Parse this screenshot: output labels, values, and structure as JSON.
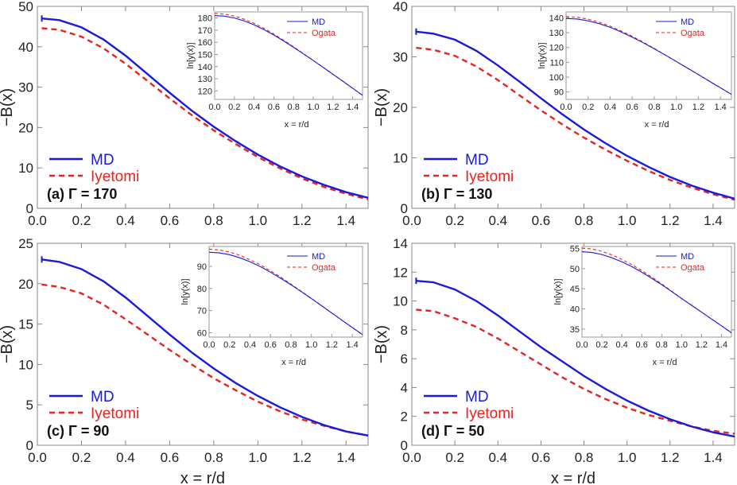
{
  "figure_axis_labels": {
    "ylabel": "−B(x)",
    "xlabel": "x = r/d",
    "inset_ylabel": "ln[y(x)]",
    "inset_xlabel": "x = r/d"
  },
  "colors": {
    "md": "#1a1adc",
    "theory": "#e8231f"
  },
  "chart_data": [
    {
      "type": "line",
      "panel_label": "(a) Γ = 170",
      "xlim": [
        0,
        1.5
      ],
      "ylim": [
        0,
        50
      ],
      "xticks": [
        "0.0",
        "0.2",
        "0.4",
        "0.6",
        "0.8",
        "1.0",
        "1.2",
        "1.4"
      ],
      "yticks": [
        "0",
        "10",
        "20",
        "30",
        "40",
        "50"
      ],
      "legend": [
        "MD",
        "Iyetomi"
      ],
      "x": [
        0.02,
        0.1,
        0.2,
        0.3,
        0.4,
        0.5,
        0.6,
        0.7,
        0.8,
        0.9,
        1.0,
        1.1,
        1.2,
        1.3,
        1.4,
        1.5
      ],
      "series": [
        {
          "name": "MD",
          "values": [
            47.0,
            46.6,
            44.8,
            41.8,
            37.8,
            33.2,
            28.6,
            24.2,
            20.2,
            16.6,
            13.3,
            10.4,
            7.9,
            5.8,
            4.0,
            2.6
          ]
        },
        {
          "name": "Iyetomi",
          "values": [
            44.6,
            44.2,
            42.5,
            39.6,
            35.8,
            31.5,
            27.2,
            23.1,
            19.3,
            15.9,
            12.7,
            9.9,
            7.4,
            5.3,
            3.6,
            2.2
          ]
        }
      ],
      "inset": {
        "type": "line",
        "xlim": [
          0,
          1.5
        ],
        "ylim": [
          113,
          185
        ],
        "xticks": [
          "0.0",
          "0.2",
          "0.4",
          "0.6",
          "0.8",
          "1.0",
          "1.2",
          "1.4"
        ],
        "yticks": [
          "120",
          "130",
          "140",
          "150",
          "160",
          "170",
          "180"
        ],
        "legend": [
          "MD",
          "Ogata"
        ],
        "x": [
          0.0,
          0.1,
          0.2,
          0.3,
          0.4,
          0.5,
          0.6,
          0.7,
          0.8,
          0.9,
          1.0,
          1.1,
          1.2,
          1.3,
          1.4,
          1.5
        ],
        "series": [
          {
            "name": "MD",
            "values": [
              182.0,
              181.5,
              180.0,
              177.6,
              174.4,
              170.4,
              166.0,
              161.1,
              155.9,
              150.5,
              145.0,
              139.4,
              133.7,
              128.0,
              122.2,
              116.4
            ]
          },
          {
            "name": "Ogata",
            "values": [
              183.8,
              183.2,
              181.6,
              179.0,
              175.6,
              171.5,
              166.8,
              161.7,
              156.3,
              150.7,
              145.0,
              139.3,
              133.6,
              127.9,
              122.1,
              116.3
            ]
          }
        ]
      }
    },
    {
      "type": "line",
      "panel_label": "(b) Γ = 130",
      "xlim": [
        0,
        1.5
      ],
      "ylim": [
        0,
        40
      ],
      "xticks": [
        "0.0",
        "0.2",
        "0.4",
        "0.6",
        "0.8",
        "1.0",
        "1.2",
        "1.4"
      ],
      "yticks": [
        "0",
        "10",
        "20",
        "30",
        "40"
      ],
      "legend": [
        "MD",
        "Iyetomi"
      ],
      "x": [
        0.02,
        0.1,
        0.2,
        0.3,
        0.4,
        0.5,
        0.6,
        0.7,
        0.8,
        0.9,
        1.0,
        1.1,
        1.2,
        1.3,
        1.4,
        1.5
      ],
      "series": [
        {
          "name": "MD",
          "values": [
            35.0,
            34.6,
            33.4,
            31.2,
            28.3,
            25.1,
            21.8,
            18.6,
            15.6,
            12.9,
            10.4,
            8.2,
            6.2,
            4.5,
            3.1,
            1.9
          ]
        },
        {
          "name": "Iyetomi",
          "values": [
            31.8,
            31.4,
            30.2,
            28.1,
            25.4,
            22.4,
            19.4,
            16.6,
            14.0,
            11.6,
            9.4,
            7.4,
            5.6,
            4.1,
            2.8,
            1.7
          ]
        }
      ],
      "inset": {
        "type": "line",
        "xlim": [
          0,
          1.5
        ],
        "ylim": [
          85,
          144
        ],
        "xticks": [
          "0.0",
          "0.2",
          "0.4",
          "0.6",
          "0.8",
          "1.0",
          "1.2",
          "1.4"
        ],
        "yticks": [
          "90",
          "100",
          "110",
          "120",
          "130",
          "140"
        ],
        "legend": [
          "MD",
          "Ogata"
        ],
        "x": [
          0.0,
          0.1,
          0.2,
          0.3,
          0.4,
          0.5,
          0.6,
          0.7,
          0.8,
          0.9,
          1.0,
          1.1,
          1.2,
          1.3,
          1.4,
          1.5
        ],
        "series": [
          {
            "name": "MD",
            "values": [
              139.6,
              139.2,
              138.0,
              136.1,
              133.6,
              130.5,
              127.0,
              123.2,
              119.1,
              114.9,
              110.6,
              106.2,
              101.8,
              97.3,
              92.9,
              88.4
            ]
          },
          {
            "name": "Ogata",
            "values": [
              140.9,
              140.4,
              139.1,
              137.1,
              134.4,
              131.2,
              127.6,
              123.6,
              119.4,
              115.0,
              110.6,
              106.1,
              101.7,
              97.2,
              92.8,
              88.3
            ]
          }
        ]
      }
    },
    {
      "type": "line",
      "panel_label": "(c) Γ =  90",
      "xlim": [
        0,
        1.5
      ],
      "ylim": [
        0,
        25
      ],
      "xticks": [
        "0.0",
        "0.2",
        "0.4",
        "0.6",
        "0.8",
        "1.0",
        "1.2",
        "1.4"
      ],
      "yticks": [
        "0",
        "5",
        "10",
        "15",
        "20",
        "25"
      ],
      "legend": [
        "MD",
        "Iyetomi"
      ],
      "x": [
        0.02,
        0.1,
        0.2,
        0.3,
        0.4,
        0.5,
        0.6,
        0.7,
        0.8,
        0.9,
        1.0,
        1.1,
        1.2,
        1.3,
        1.4,
        1.5
      ],
      "series": [
        {
          "name": "MD",
          "values": [
            23.0,
            22.7,
            21.8,
            20.3,
            18.3,
            16.0,
            13.7,
            11.5,
            9.5,
            7.7,
            6.1,
            4.7,
            3.5,
            2.5,
            1.7,
            1.2
          ]
        },
        {
          "name": "Iyetomi",
          "values": [
            19.9,
            19.6,
            18.8,
            17.4,
            15.6,
            13.7,
            11.8,
            10.0,
            8.3,
            6.8,
            5.4,
            4.2,
            3.2,
            2.4,
            1.7,
            1.2
          ]
        }
      ],
      "inset": {
        "type": "line",
        "xlim": [
          0,
          1.5
        ],
        "ylim": [
          58,
          99
        ],
        "xticks": [
          "0.0",
          "0.2",
          "0.4",
          "0.6",
          "0.8",
          "1.0",
          "1.2",
          "1.4"
        ],
        "yticks": [
          "60",
          "70",
          "80",
          "90"
        ],
        "legend": [
          "MD",
          "Ogata"
        ],
        "x": [
          0.0,
          0.1,
          0.2,
          0.3,
          0.4,
          0.5,
          0.6,
          0.7,
          0.8,
          0.9,
          1.0,
          1.1,
          1.2,
          1.3,
          1.4,
          1.5
        ],
        "series": [
          {
            "name": "MD",
            "values": [
              96.4,
              96.1,
              95.3,
              93.9,
              92.1,
              89.9,
              87.4,
              84.6,
              81.7,
              78.6,
              75.4,
              72.2,
              68.9,
              65.6,
              62.4,
              59.1
            ]
          },
          {
            "name": "Ogata",
            "values": [
              97.8,
              97.4,
              96.5,
              95.0,
              93.0,
              90.7,
              88.0,
              85.1,
              82.0,
              78.8,
              75.5,
              72.2,
              68.9,
              65.6,
              62.3,
              59.0
            ]
          }
        ]
      }
    },
    {
      "type": "line",
      "panel_label": "(d) Γ =  50",
      "xlim": [
        0,
        1.5
      ],
      "ylim": [
        0,
        14
      ],
      "xticks": [
        "0.0",
        "0.2",
        "0.4",
        "0.6",
        "0.8",
        "1.0",
        "1.2",
        "1.4"
      ],
      "yticks": [
        "0",
        "2",
        "4",
        "6",
        "8",
        "10",
        "12",
        "14"
      ],
      "legend": [
        "MD",
        "Iyetomi"
      ],
      "x": [
        0.02,
        0.1,
        0.2,
        0.3,
        0.4,
        0.5,
        0.6,
        0.7,
        0.8,
        0.9,
        1.0,
        1.1,
        1.2,
        1.3,
        1.4,
        1.5
      ],
      "series": [
        {
          "name": "MD",
          "values": [
            11.4,
            11.3,
            10.8,
            10.0,
            9.0,
            7.9,
            6.8,
            5.8,
            4.8,
            3.9,
            3.1,
            2.4,
            1.8,
            1.3,
            0.9,
            0.6
          ]
        },
        {
          "name": "Iyetomi",
          "values": [
            9.4,
            9.3,
            8.8,
            8.2,
            7.4,
            6.5,
            5.6,
            4.7,
            3.9,
            3.2,
            2.6,
            2.1,
            1.7,
            1.3,
            1.0,
            0.8
          ]
        }
      ],
      "inset": {
        "type": "line",
        "xlim": [
          0,
          1.5
        ],
        "ylim": [
          33,
          55.5
        ],
        "xticks": [
          "0.0",
          "0.2",
          "0.4",
          "0.6",
          "0.8",
          "1.0",
          "1.2",
          "1.4"
        ],
        "yticks": [
          "35",
          "40",
          "45",
          "50",
          "55"
        ],
        "legend": [
          "MD",
          "Ogata"
        ],
        "x": [
          0.0,
          0.1,
          0.2,
          0.3,
          0.4,
          0.5,
          0.6,
          0.7,
          0.8,
          0.9,
          1.0,
          1.1,
          1.2,
          1.3,
          1.4,
          1.5
        ],
        "series": [
          {
            "name": "MD",
            "values": [
              54.2,
              54.0,
              53.5,
              52.7,
              51.7,
              50.5,
              49.1,
              47.6,
              46.0,
              44.3,
              42.6,
              40.9,
              39.2,
              37.5,
              35.8,
              34.1
            ]
          },
          {
            "name": "Ogata",
            "values": [
              55.1,
              54.9,
              54.3,
              53.4,
              52.3,
              51.0,
              49.5,
              47.9,
              46.2,
              44.4,
              42.6,
              40.9,
              39.2,
              37.5,
              35.8,
              34.0
            ]
          }
        ]
      }
    }
  ]
}
